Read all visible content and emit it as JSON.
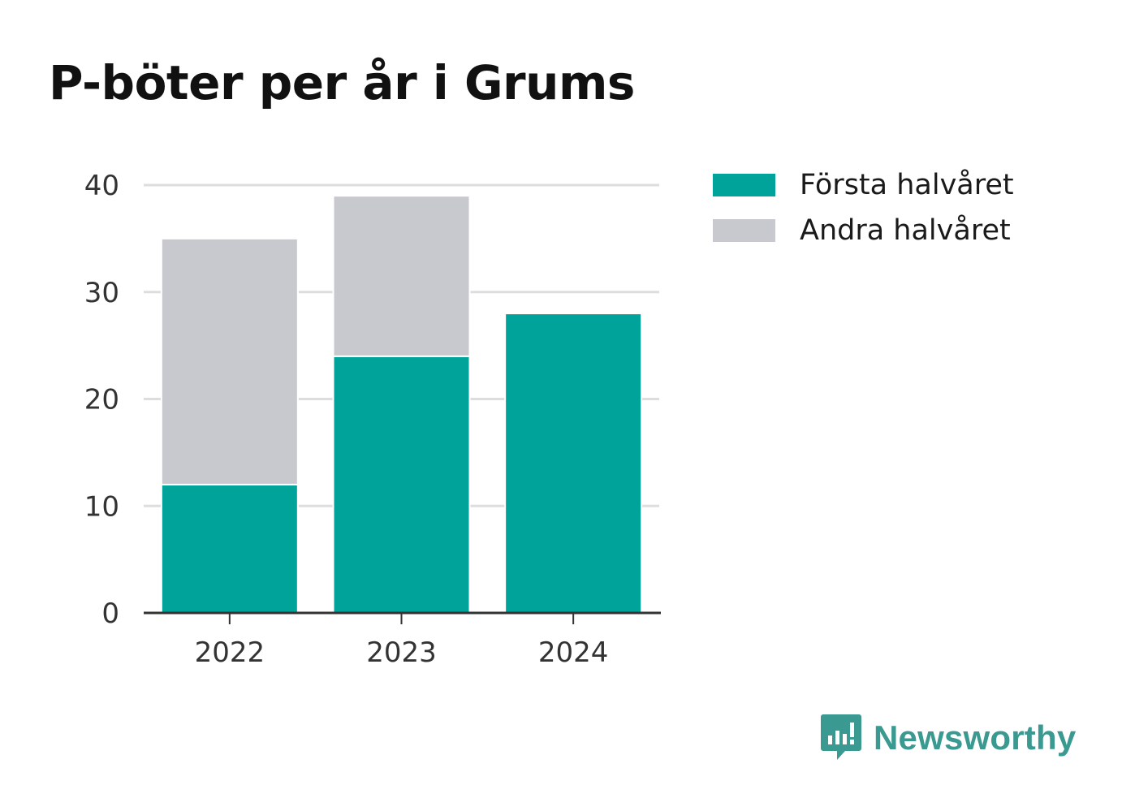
{
  "title": "P-böter per år i Grums",
  "legend": {
    "series_1": "Första halvåret",
    "series_2": "Andra halvåret"
  },
  "brand": {
    "name": "Newsworthy",
    "icon": "newsworthy-logo-icon",
    "color": "#3a9990"
  },
  "colors": {
    "first_half": "#00a39a",
    "second_half": "#c8c8cf",
    "grid": "#dddddd",
    "axis": "#333333"
  },
  "chart_data": {
    "type": "bar",
    "stacked": true,
    "categories": [
      "2022",
      "2023",
      "2024"
    ],
    "series": [
      {
        "name": "Första halvåret",
        "values": [
          12,
          24,
          28
        ]
      },
      {
        "name": "Andra halvåret",
        "values": [
          23,
          15,
          0
        ]
      }
    ],
    "title": "P-böter per år i Grums",
    "xlabel": "",
    "ylabel": "",
    "ylim": [
      0,
      40
    ],
    "yticks": [
      0,
      10,
      20,
      30,
      40
    ],
    "grid": true,
    "legend_position": "top-right"
  }
}
